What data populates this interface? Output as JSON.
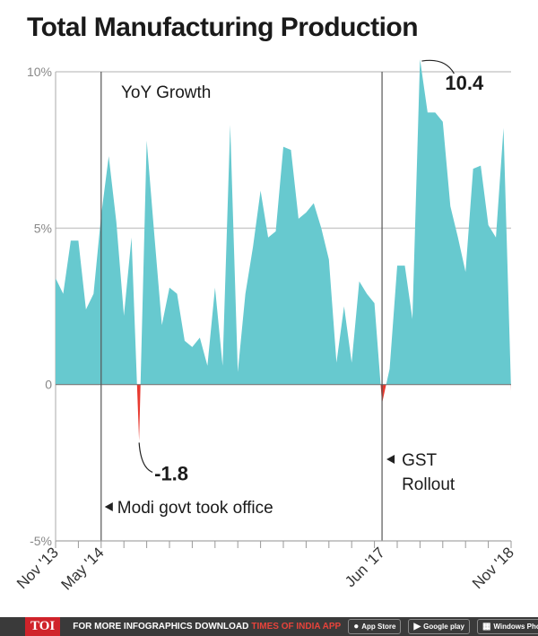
{
  "title": "Total Manufacturing Production",
  "colors": {
    "area": "#67c9cf",
    "negative": "#e8392f",
    "grid": "#cccccc",
    "vline": "#555555"
  },
  "chart_data": {
    "type": "area",
    "title": "Total Manufacturing Production",
    "subtitle": "YoY Growth",
    "ylim": [
      -5,
      10
    ],
    "yticks": [
      {
        "v": 10,
        "label": "10%"
      },
      {
        "v": 5,
        "label": "5%"
      },
      {
        "v": 0,
        "label": "0"
      },
      {
        "v": -5,
        "label": "-5%"
      }
    ],
    "xlim": [
      0,
      60
    ],
    "xticks": [
      {
        "i": 0,
        "label": "Nov '13"
      },
      {
        "i": 6,
        "label": "May '14"
      },
      {
        "i": 43,
        "label": "Jun '17"
      },
      {
        "i": 60,
        "label": "Nov '18"
      }
    ],
    "series": [
      {
        "values": [
          3.4,
          2.9,
          4.6,
          4.6,
          2.4,
          2.9,
          5.4,
          7.3,
          5.2,
          2.2,
          4.7,
          -1.8,
          7.8,
          4.8,
          1.9,
          3.1,
          2.9,
          1.4,
          1.2,
          1.5,
          0.6,
          3.1,
          0.6,
          8.3,
          0.4,
          2.9,
          4.4,
          6.2,
          4.7,
          4.9,
          7.6,
          7.5,
          5.3,
          5.5,
          5.8,
          5.0,
          4.0,
          0.7,
          2.5,
          0.7,
          3.3,
          2.9,
          2.6,
          -0.6,
          0.5,
          3.8,
          3.8,
          2.1,
          10.4,
          8.7,
          8.7,
          8.4,
          5.7,
          4.7,
          3.6,
          6.9,
          7.0,
          5.1,
          4.7,
          8.2,
          -0.2
        ]
      }
    ],
    "annotations": {
      "max": "10.4",
      "min": "-1.8",
      "modi": "Modi govt took office",
      "gst_line1": "GST",
      "gst_line2": "Rollout"
    },
    "vlines": [
      6,
      43
    ],
    "grid": true
  },
  "footer": {
    "logo": "TOI",
    "text": "FOR MORE  INFOGRAPHICS DOWNLOAD",
    "brand": "TIMES OF INDIA  APP",
    "stores": [
      "App Store",
      "Google play",
      "Windows Phone"
    ]
  }
}
